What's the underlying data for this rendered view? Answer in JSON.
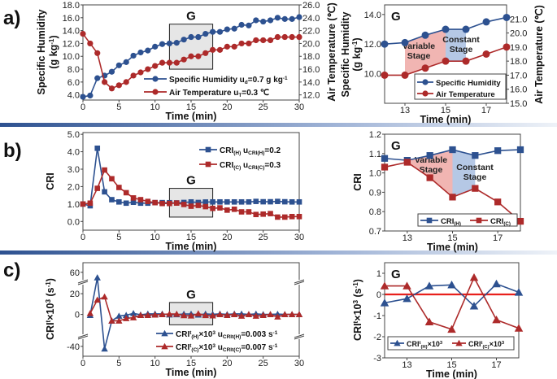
{
  "panels": [
    "a)",
    "b)",
    "c)"
  ],
  "colors": {
    "blue": "#2d5190",
    "red": "#ad2a2a",
    "variable_fill": "#f1b5b2",
    "constant_fill": "#b5c8e5",
    "box_fill": "#e6e6e6",
    "zero_line": "#e8201c"
  },
  "chart_data": [
    {
      "type": "line",
      "marker": "circle",
      "xlabel": [
        {
          "t": "Time (min)"
        }
      ],
      "ylabel": [
        [
          {
            "t": "Specific Humidity"
          }
        ],
        [
          {
            "t": "(g kg"
          },
          {
            "t": "-1",
            "sup": true
          },
          {
            "t": ")"
          }
        ]
      ],
      "y2label": [
        {
          "t": "Air Temperature (℃)"
        }
      ],
      "xlim": [
        0,
        30
      ],
      "ylim": [
        3.2,
        18
      ],
      "y2lim": [
        11.2,
        26
      ],
      "xticks": [
        0,
        5,
        10,
        15,
        20,
        25,
        30
      ],
      "xtick_labels": [
        "0",
        "5",
        "10",
        "15",
        "20",
        "25",
        "30"
      ],
      "yticks": [
        4,
        6,
        8,
        10,
        12,
        14,
        16,
        18
      ],
      "ytick_labels": [
        "4.0",
        "6.0",
        "8.0",
        "10.0",
        "12.0",
        "14.0",
        "16.0",
        "18.0"
      ],
      "y2ticks": [
        12,
        14,
        16,
        18,
        20,
        22,
        24,
        26
      ],
      "y2tick_labels": [
        "12.0",
        "14.0",
        "16.0",
        "18.0",
        "20.0",
        "22.0",
        "24.0",
        "26.0"
      ],
      "box": {
        "x": [
          12,
          18
        ],
        "y": [
          8,
          15
        ],
        "label": "G"
      },
      "x": [
        0,
        1,
        2,
        3,
        4,
        5,
        6,
        7,
        8,
        9,
        10,
        11,
        12,
        13,
        14,
        15,
        16,
        17,
        18,
        19,
        20,
        21,
        22,
        23,
        24,
        25,
        26,
        27,
        28,
        29,
        30
      ],
      "series": [
        {
          "name": [
            {
              "t": "Specific Humidity  u"
            },
            {
              "t": "d",
              "sub": true
            },
            {
              "t": "=0.7 g kg"
            },
            {
              "t": "-1",
              "sup": true
            }
          ],
          "color": "blue",
          "axis": "left",
          "values": [
            3.7,
            3.9,
            6.6,
            7.0,
            7.6,
            8.6,
            9.1,
            10.1,
            10.6,
            10.9,
            11.5,
            11.9,
            12.0,
            12.1,
            12.6,
            13.0,
            13.0,
            13.5,
            13.8,
            13.8,
            14.2,
            14.3,
            14.9,
            14.8,
            15.6,
            15.4,
            15.6,
            16.0,
            15.8,
            15.8,
            16.1
          ]
        },
        {
          "name": [
            {
              "t": "Air Temperature     u"
            },
            {
              "t": "T",
              "sub": true
            },
            {
              "t": "=0.3 ℃"
            }
          ],
          "color": "red",
          "axis": "right",
          "values": [
            21.5,
            20,
            18.5,
            14,
            13,
            13.5,
            14,
            15,
            15.5,
            16,
            16.5,
            17,
            17,
            17,
            17.5,
            18,
            18,
            18.5,
            19,
            19,
            19.5,
            19.5,
            20,
            20,
            20.5,
            20.5,
            20.5,
            21,
            21,
            21,
            21
          ]
        }
      ]
    },
    {
      "type": "line",
      "marker": "circle",
      "xlabel": [
        {
          "t": "Time (min)"
        }
      ],
      "ylabel": [
        [
          {
            "t": "Specific Humidity"
          }
        ],
        [
          {
            "t": "(g kg"
          },
          {
            "t": "-1",
            "sup": true
          },
          {
            "t": ")"
          }
        ]
      ],
      "y2label": [
        {
          "t": "Air Temperature (℃)"
        }
      ],
      "xlim": [
        12,
        18
      ],
      "ylim": [
        8,
        14.65
      ],
      "y2lim": [
        15,
        22
      ],
      "xticks": [
        13,
        15,
        17
      ],
      "xtick_labels": [
        "13",
        "15",
        "17"
      ],
      "yticks": [
        10,
        12,
        14
      ],
      "ytick_labels": [
        "10.0",
        "12.0",
        "14.0"
      ],
      "y2ticks": [
        15,
        16,
        17,
        18,
        19,
        20,
        21
      ],
      "y2tick_labels": [
        "15.0",
        "16.0",
        "17.0",
        "18.0",
        "19.0",
        "20.0",
        "21.0"
      ],
      "corner_label": "G",
      "stages": [
        {
          "label": [
            "Variable",
            "Stage"
          ],
          "x": [
            13,
            15
          ],
          "fill": "variable_fill"
        },
        {
          "label": [
            "Constant",
            "Stage"
          ],
          "x": [
            15,
            16
          ],
          "fill": "constant_fill"
        }
      ],
      "x": [
        12,
        13,
        14,
        15,
        16,
        17,
        18
      ],
      "series": [
        {
          "name": [
            {
              "t": "Specific Humidity"
            }
          ],
          "color": "blue",
          "axis": "left",
          "values": [
            12.0,
            12.1,
            12.6,
            13.0,
            13.0,
            13.5,
            13.8
          ]
        },
        {
          "name": [
            {
              "t": "Air Temperature"
            }
          ],
          "color": "red",
          "axis": "right",
          "values": [
            17,
            17,
            17.5,
            18,
            18,
            18.5,
            19
          ]
        }
      ]
    },
    {
      "type": "line",
      "marker": "square",
      "xlabel": [
        {
          "t": "Time (min)"
        }
      ],
      "ylabel": [
        [
          {
            "t": "CRI"
          }
        ]
      ],
      "xlim": [
        0,
        30
      ],
      "ylim": [
        -0.5,
        5.1
      ],
      "xticks": [
        0,
        5,
        10,
        15,
        20,
        25,
        30
      ],
      "xtick_labels": [
        "0",
        "5",
        "10",
        "15",
        "20",
        "25",
        "30"
      ],
      "yticks": [
        0,
        1,
        2,
        3,
        4,
        5
      ],
      "ytick_labels": [
        "0.0",
        "1.0",
        "2.0",
        "3.0",
        "4.0",
        "5.0"
      ],
      "box": {
        "x": [
          12,
          18
        ],
        "y": [
          0.25,
          1.9
        ],
        "label": "G"
      },
      "x": [
        0,
        1,
        2,
        3,
        4,
        5,
        6,
        7,
        8,
        9,
        10,
        11,
        12,
        13,
        14,
        15,
        16,
        17,
        18,
        19,
        20,
        21,
        22,
        23,
        24,
        25,
        26,
        27,
        28,
        29,
        30
      ],
      "series": [
        {
          "name": [
            {
              "t": "CRI"
            },
            {
              "t": "(H)",
              "sub": true
            },
            {
              "t": "  u"
            },
            {
              "t": "CRI(H)",
              "sub": true
            },
            {
              "t": "=0.2"
            }
          ],
          "color": "blue",
          "values": [
            1.0,
            0.9,
            4.2,
            1.7,
            1.25,
            1.12,
            1.05,
            1.1,
            1.05,
            1.05,
            1.08,
            1.08,
            1.075,
            1.065,
            1.09,
            1.12,
            1.09,
            1.115,
            1.12,
            1.12,
            1.12,
            1.12,
            1.12,
            1.12,
            1.15,
            1.13,
            1.13,
            1.15,
            1.13,
            1.12,
            1.12
          ]
        },
        {
          "name": [
            {
              "t": "CRI"
            },
            {
              "t": "(C)",
              "sub": true
            },
            {
              "t": "  u"
            },
            {
              "t": "CRI(C)",
              "sub": true
            },
            {
              "t": "=0.3"
            }
          ],
          "color": "red",
          "values": [
            1.0,
            1.05,
            1.9,
            2.95,
            2.45,
            1.95,
            1.65,
            1.35,
            1.25,
            1.15,
            1.08,
            1.03,
            1.03,
            1.055,
            0.975,
            0.875,
            0.92,
            0.85,
            0.75,
            0.78,
            0.65,
            0.7,
            0.55,
            0.55,
            0.4,
            0.42,
            0.45,
            0.25,
            0.25,
            0.28,
            0.28
          ]
        }
      ]
    },
    {
      "type": "line",
      "marker": "square",
      "xlabel": [
        {
          "t": "Time (min)"
        }
      ],
      "ylabel": [
        [
          {
            "t": "CRI"
          }
        ]
      ],
      "xlim": [
        12,
        18
      ],
      "ylim": [
        0.7,
        1.2
      ],
      "xticks": [
        13,
        15,
        17
      ],
      "xtick_labels": [
        "13",
        "15",
        "17"
      ],
      "yticks": [
        0.7,
        0.8,
        0.9,
        1.0,
        1.1,
        1.2
      ],
      "ytick_labels": [
        "0.7",
        "0.8",
        "0.9",
        "1.0",
        "1.1",
        "1.2"
      ],
      "corner_label": "G",
      "stages": [
        {
          "label": [
            "Variable",
            "Stage"
          ],
          "x": [
            13,
            15
          ],
          "fill": "variable_fill"
        },
        {
          "label": [
            "Constant",
            "Stage"
          ],
          "x": [
            15,
            16
          ],
          "fill": "constant_fill"
        }
      ],
      "x": [
        12,
        13,
        14,
        15,
        16,
        17,
        18
      ],
      "series": [
        {
          "name": [
            {
              "t": "CRI"
            },
            {
              "t": "(H)",
              "sub": true
            }
          ],
          "color": "blue",
          "values": [
            1.075,
            1.065,
            1.09,
            1.12,
            1.09,
            1.115,
            1.12
          ]
        },
        {
          "name": [
            {
              "t": "CRI"
            },
            {
              "t": "(C)",
              "sub": true
            }
          ],
          "color": "red",
          "values": [
            1.03,
            1.055,
            0.975,
            0.875,
            0.92,
            0.85,
            0.75
          ]
        }
      ]
    },
    {
      "type": "line",
      "marker": "triangle",
      "broken_axis": true,
      "xlabel": [
        {
          "t": "Time (min)"
        }
      ],
      "ylabel": [
        [
          {
            "t": "CRI"
          },
          {
            "t": "t",
            "sup": true
          },
          {
            "t": "×10"
          },
          {
            "t": "3",
            "sup": true
          },
          {
            "t": " (s"
          },
          {
            "t": "-1",
            "sup": true
          },
          {
            "t": ")"
          }
        ]
      ],
      "xlim": [
        0,
        30
      ],
      "ylim": [
        -48,
        70
      ],
      "xticks": [
        0,
        5,
        10,
        15,
        20,
        25,
        30
      ],
      "xtick_labels": [
        "0",
        "5",
        "10",
        "15",
        "20",
        "25",
        "30"
      ],
      "yticks": [
        -40,
        0,
        20,
        60
      ],
      "ytick_labels": [
        "-40",
        "0",
        "20",
        "60"
      ],
      "box": {
        "x": [
          12,
          18
        ],
        "y": [
          -13,
          11.5
        ],
        "label": "G"
      },
      "x": [
        1,
        2,
        3,
        4,
        5,
        6,
        7,
        8,
        9,
        10,
        11,
        12,
        13,
        14,
        15,
        16,
        17,
        18,
        19,
        20,
        21,
        22,
        23,
        24,
        25,
        26,
        27,
        28,
        29,
        30
      ],
      "series": [
        {
          "name": [
            {
              "t": "CRI"
            },
            {
              "t": "t",
              "sup": true
            },
            {
              "t": "(H)",
              "sub": true
            },
            {
              "t": "×10"
            },
            {
              "t": "3",
              "sup": true
            },
            {
              "t": "  u"
            },
            {
              "t": "CRIt(H)",
              "sub": true
            },
            {
              "t": "=0.003 s"
            },
            {
              "t": "-1",
              "sup": true
            }
          ],
          "color": "blue",
          "values": [
            -1,
            50,
            -42,
            -8,
            -2,
            -1,
            1,
            -0.5,
            0.5,
            0.5,
            0.5,
            -0.4,
            -0.2,
            0.4,
            0.45,
            -0.55,
            0.5,
            0.1,
            0.5,
            0,
            0.5,
            0.5,
            0,
            0.5,
            0,
            0,
            0.3,
            0,
            0,
            0
          ]
        },
        {
          "name": [
            {
              "t": "CRI"
            },
            {
              "t": "t",
              "sup": true
            },
            {
              "t": "(C)",
              "sub": true
            },
            {
              "t": "×10"
            },
            {
              "t": "3",
              "sup": true
            },
            {
              "t": "  u"
            },
            {
              "t": "CRIt(C)",
              "sub": true
            },
            {
              "t": "=0.007 s"
            },
            {
              "t": "-1",
              "sup": true
            }
          ],
          "color": "red",
          "values": [
            1,
            14,
            17,
            -8,
            -8,
            -5,
            -4,
            -1,
            -1,
            -0.5,
            0,
            0.4,
            0.4,
            -1.3,
            -1.65,
            0.8,
            -1.2,
            -1.6,
            0,
            -1,
            0,
            -2,
            0,
            -2,
            -1,
            0,
            -3,
            0,
            0,
            0
          ]
        }
      ]
    },
    {
      "type": "line",
      "marker": "triangle",
      "zero_line": true,
      "xlabel": [
        {
          "t": "Time (min)"
        }
      ],
      "ylabel": [
        [
          {
            "t": "CRI"
          },
          {
            "t": "t",
            "sup": true
          },
          {
            "t": "×10"
          },
          {
            "t": "3",
            "sup": true
          },
          {
            "t": " (s"
          },
          {
            "t": "-1",
            "sup": true
          },
          {
            "t": ")"
          }
        ]
      ],
      "xlim": [
        12,
        18
      ],
      "ylim": [
        -3,
        1.5
      ],
      "xticks": [
        13,
        15,
        17
      ],
      "xtick_labels": [
        "13",
        "15",
        "17"
      ],
      "yticks": [
        -3,
        -2,
        -1,
        0,
        1
      ],
      "ytick_labels": [
        "-3",
        "-2",
        "-1",
        "0",
        "1"
      ],
      "corner_label": "G",
      "x": [
        12,
        13,
        14,
        15,
        16,
        17,
        18
      ],
      "series": [
        {
          "name": [
            {
              "t": "CRI"
            },
            {
              "t": "t",
              "sup": true
            },
            {
              "t": "(H)",
              "sub": true
            },
            {
              "t": "×10"
            },
            {
              "t": "3",
              "sup": true
            }
          ],
          "color": "blue",
          "values": [
            -0.4,
            -0.2,
            0.4,
            0.45,
            -0.55,
            0.5,
            0.1
          ]
        },
        {
          "name": [
            {
              "t": "CRI"
            },
            {
              "t": "t",
              "sup": true
            },
            {
              "t": "(C)",
              "sub": true
            },
            {
              "t": "×10"
            },
            {
              "t": "3",
              "sup": true
            }
          ],
          "color": "red",
          "values": [
            0.4,
            0.4,
            -1.3,
            -1.65,
            0.8,
            -1.2,
            -1.6
          ]
        }
      ]
    }
  ]
}
